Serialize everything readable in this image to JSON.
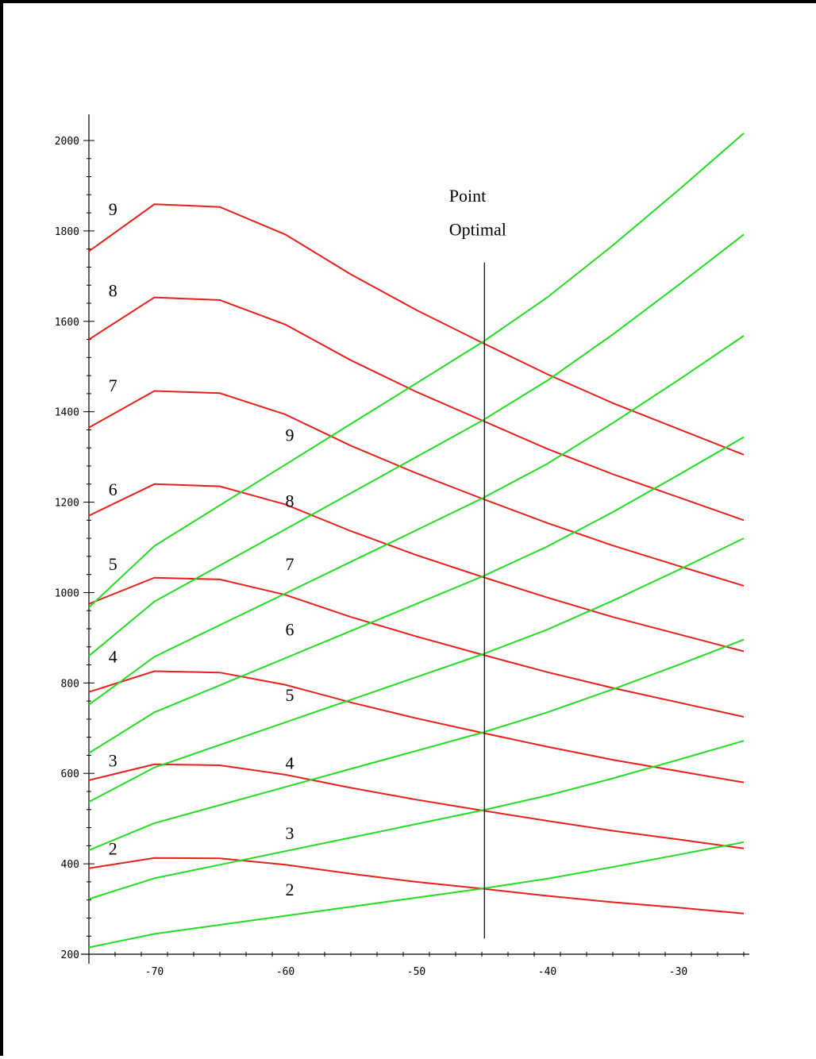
{
  "chart_data": {
    "type": "line",
    "title": "",
    "xlabel": "",
    "ylabel": "",
    "xlim": [
      -75,
      -25
    ],
    "ylim": [
      200,
      2050
    ],
    "x_ticks": [
      -70,
      -60,
      -50,
      -40,
      -30
    ],
    "x_tick_labels": [
      "-70",
      "-60",
      "-50",
      "-40",
      "-30"
    ],
    "y_ticks": [
      200,
      400,
      600,
      800,
      1000,
      1200,
      1400,
      1600,
      1800,
      2000
    ],
    "y_tick_labels": [
      "200",
      "400",
      "600",
      "800",
      "1000",
      "1200",
      "1400",
      "1600",
      "1800",
      "2000"
    ],
    "grid": false,
    "colors": {
      "red": "#e8201c",
      "green": "#22dd22",
      "line": "#000000"
    },
    "red_x": [
      -75,
      -70,
      -65,
      -60,
      -55,
      -50,
      -45,
      -40,
      -35,
      -30,
      -25
    ],
    "red_series": [
      {
        "label": "2",
        "values": [
          390,
          413,
          412,
          398,
          378,
          360,
          345,
          329,
          315,
          303,
          290
        ]
      },
      {
        "label": "3",
        "values": [
          585,
          620,
          618,
          597,
          568,
          542,
          518,
          495,
          473,
          454,
          434
        ]
      },
      {
        "label": "4",
        "values": [
          780,
          826,
          823,
          796,
          757,
          722,
          690,
          659,
          630,
          605,
          580
        ]
      },
      {
        "label": "5",
        "values": [
          975,
          1033,
          1029,
          995,
          946,
          903,
          863,
          824,
          789,
          757,
          725
        ]
      },
      {
        "label": "6",
        "values": [
          1170,
          1240,
          1235,
          1195,
          1136,
          1083,
          1035,
          989,
          946,
          908,
          870
        ]
      },
      {
        "label": "7",
        "values": [
          1365,
          1446,
          1441,
          1394,
          1325,
          1264,
          1208,
          1154,
          1104,
          1059,
          1015
        ]
      },
      {
        "label": "8",
        "values": [
          1560,
          1653,
          1647,
          1593,
          1514,
          1444,
          1381,
          1318,
          1262,
          1211,
          1160
        ]
      },
      {
        "label": "9",
        "values": [
          1755,
          1859,
          1853,
          1792,
          1704,
          1625,
          1553,
          1483,
          1419,
          1362,
          1305
        ]
      }
    ],
    "green_x": [
      -75,
      -70,
      -65,
      -60,
      -55,
      -50,
      -45,
      -40,
      -35,
      -30,
      -25
    ],
    "green_series": [
      {
        "label": "2",
        "values": [
          215,
          245,
          265,
          285,
          305,
          325,
          345,
          367,
          393,
          420,
          448
        ]
      },
      {
        "label": "3",
        "values": [
          322,
          368,
          398,
          428,
          458,
          488,
          518,
          551,
          589,
          630,
          672
        ]
      },
      {
        "label": "4",
        "values": [
          430,
          490,
          530,
          570,
          610,
          650,
          690,
          735,
          786,
          840,
          896
        ]
      },
      {
        "label": "5",
        "values": [
          537,
          613,
          663,
          713,
          763,
          813,
          863,
          918,
          982,
          1050,
          1120
        ]
      },
      {
        "label": "6",
        "values": [
          645,
          735,
          795,
          855,
          915,
          975,
          1035,
          1102,
          1178,
          1260,
          1344
        ]
      },
      {
        "label": "7",
        "values": [
          752,
          858,
          928,
          998,
          1068,
          1138,
          1208,
          1285,
          1375,
          1470,
          1568
        ]
      },
      {
        "label": "8",
        "values": [
          860,
          980,
          1060,
          1140,
          1220,
          1300,
          1380,
          1469,
          1571,
          1680,
          1792
        ]
      },
      {
        "label": "9",
        "values": [
          967,
          1103,
          1193,
          1283,
          1373,
          1463,
          1553,
          1653,
          1768,
          1890,
          2016
        ]
      }
    ],
    "red_label_positions": [
      {
        "label": "2",
        "x": -73.5,
        "y": 420
      },
      {
        "label": "3",
        "x": -73.5,
        "y": 615
      },
      {
        "label": "4",
        "x": -73.5,
        "y": 845
      },
      {
        "label": "5",
        "x": -73.5,
        "y": 1050
      },
      {
        "label": "6",
        "x": -73.5,
        "y": 1215
      },
      {
        "label": "7",
        "x": -73.5,
        "y": 1445
      },
      {
        "label": "8",
        "x": -73.5,
        "y": 1655
      },
      {
        "label": "9",
        "x": -73.5,
        "y": 1835
      }
    ],
    "green_label_positions": [
      {
        "label": "2",
        "x": -60,
        "y": 330
      },
      {
        "label": "3",
        "x": -60,
        "y": 455
      },
      {
        "label": "4",
        "x": -60,
        "y": 610
      },
      {
        "label": "5",
        "x": -60,
        "y": 760
      },
      {
        "label": "6",
        "x": -60,
        "y": 905
      },
      {
        "label": "7",
        "x": -60,
        "y": 1050
      },
      {
        "label": "8",
        "x": -60,
        "y": 1190
      },
      {
        "label": "9",
        "x": -60,
        "y": 1335
      }
    ],
    "vertical_line": {
      "x": -44.8,
      "y_range": [
        235,
        1730
      ]
    },
    "annotation": {
      "lines": [
        "Point",
        "Optimal"
      ],
      "x": -47.5,
      "y": [
        1865,
        1790
      ]
    }
  }
}
